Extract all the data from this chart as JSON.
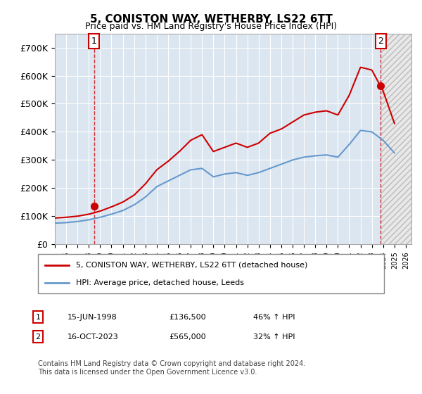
{
  "title": "5, CONISTON WAY, WETHERBY, LS22 6TT",
  "subtitle": "Price paid vs. HM Land Registry's House Price Index (HPI)",
  "ylabel": "",
  "background_color": "#dce6f1",
  "plot_bg_color": "#dce6f1",
  "hatch_color": "#c0c0c0",
  "red_line_color": "#cc0000",
  "blue_line_color": "#6699cc",
  "ylim": [
    0,
    750000
  ],
  "yticks": [
    0,
    100000,
    200000,
    300000,
    400000,
    500000,
    600000,
    700000
  ],
  "ytick_labels": [
    "£0",
    "£100K",
    "£200K",
    "£300K",
    "£400K",
    "£500K",
    "£600K",
    "£700K"
  ],
  "xlim_start": 1995.0,
  "xlim_end": 2026.5,
  "purchase1_date": 1998.46,
  "purchase1_price": 136500,
  "purchase2_date": 2023.79,
  "purchase2_price": 565000,
  "legend_line1": "5, CONISTON WAY, WETHERBY, LS22 6TT (detached house)",
  "legend_line2": "HPI: Average price, detached house, Leeds",
  "table_row1": [
    "1",
    "15-JUN-1998",
    "£136,500",
    "46% ↑ HPI"
  ],
  "table_row2": [
    "2",
    "16-OCT-2023",
    "£565,000",
    "32% ↑ HPI"
  ],
  "footnote": "Contains HM Land Registry data © Crown copyright and database right 2024.\nThis data is licensed under the Open Government Licence v3.0.",
  "red_hpi_years": [
    1995,
    1996,
    1997,
    1998,
    1999,
    2000,
    2001,
    2002,
    2003,
    2004,
    2005,
    2006,
    2007,
    2008,
    2009,
    2010,
    2011,
    2012,
    2013,
    2014,
    2015,
    2016,
    2017,
    2018,
    2019,
    2020,
    2021,
    2022,
    2023,
    2024,
    2025
  ],
  "red_hpi_values": [
    93500,
    96000,
    100000,
    107000,
    118000,
    133000,
    150000,
    175000,
    215000,
    265000,
    295000,
    330000,
    370000,
    390000,
    330000,
    345000,
    360000,
    345000,
    360000,
    395000,
    410000,
    435000,
    460000,
    470000,
    475000,
    460000,
    530000,
    630000,
    620000,
    545000,
    430000
  ],
  "blue_hpi_years": [
    1995,
    1996,
    1997,
    1998,
    1999,
    2000,
    2001,
    2002,
    2003,
    2004,
    2005,
    2006,
    2007,
    2008,
    2009,
    2010,
    2011,
    2012,
    2013,
    2014,
    2015,
    2016,
    2017,
    2018,
    2019,
    2020,
    2021,
    2022,
    2023,
    2024,
    2025
  ],
  "blue_hpi_values": [
    75000,
    77000,
    81000,
    87000,
    96000,
    107000,
    120000,
    140000,
    168000,
    205000,
    225000,
    245000,
    265000,
    270000,
    240000,
    250000,
    255000,
    245000,
    255000,
    270000,
    285000,
    300000,
    310000,
    315000,
    318000,
    310000,
    355000,
    405000,
    400000,
    370000,
    325000
  ]
}
